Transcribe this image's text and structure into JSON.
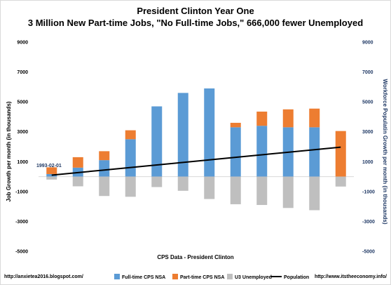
{
  "chart_data": {
    "type": "bar",
    "title": "President Clinton Year One",
    "subtitle": "3 Million New Part-time Jobs, \"No Full-time Jobs,\" 666,000 fewer Unemployed",
    "xlabel": "CPS Data - President Clinton",
    "ylabel": "Job Growth per month (in thousands)",
    "y2label": "Workforce Populatin Growth per month (in thousands)",
    "ylim": [
      -5000,
      9000
    ],
    "y2lim": [
      -5000,
      9000
    ],
    "yticks": [
      "9000",
      "7000",
      "5000",
      "3000",
      "1000",
      "-1000",
      "-3000",
      "-5000"
    ],
    "y2ticks": [
      "9000",
      "7000",
      "5000",
      "3000",
      "1000",
      "-1000",
      "-3000",
      "-5000"
    ],
    "annotation": "1993-02-01",
    "stacked": true,
    "grid": false,
    "legend_position": "bottom",
    "series": [
      {
        "name": "Full-time CPS NSA",
        "color": "#5b9bd5",
        "kind": "bar",
        "values": [
          170,
          600,
          1100,
          2500,
          4700,
          5600,
          5900,
          3300,
          3400,
          3300,
          3300,
          0
        ]
      },
      {
        "name": "Part-time CPS NSA",
        "color": "#ed7d31",
        "kind": "bar",
        "values": [
          450,
          700,
          600,
          600,
          0,
          0,
          0,
          300,
          950,
          1200,
          1250,
          3050
        ]
      },
      {
        "name": "U3 Unemployed",
        "color": "#bfbfbf",
        "kind": "bar",
        "values": [
          -200,
          -650,
          -1300,
          -1350,
          -700,
          -950,
          -1500,
          -1850,
          -1900,
          -2100,
          -2250,
          -666
        ]
      },
      {
        "name": "Population",
        "color": "#000000",
        "kind": "line",
        "values": [
          100,
          270,
          440,
          610,
          780,
          950,
          1120,
          1290,
          1460,
          1630,
          1800,
          1970
        ]
      }
    ],
    "footer_left": "http://anxietea2016.blogspot.com/",
    "footer_right": "http://www.itstheeconomy.info/"
  }
}
